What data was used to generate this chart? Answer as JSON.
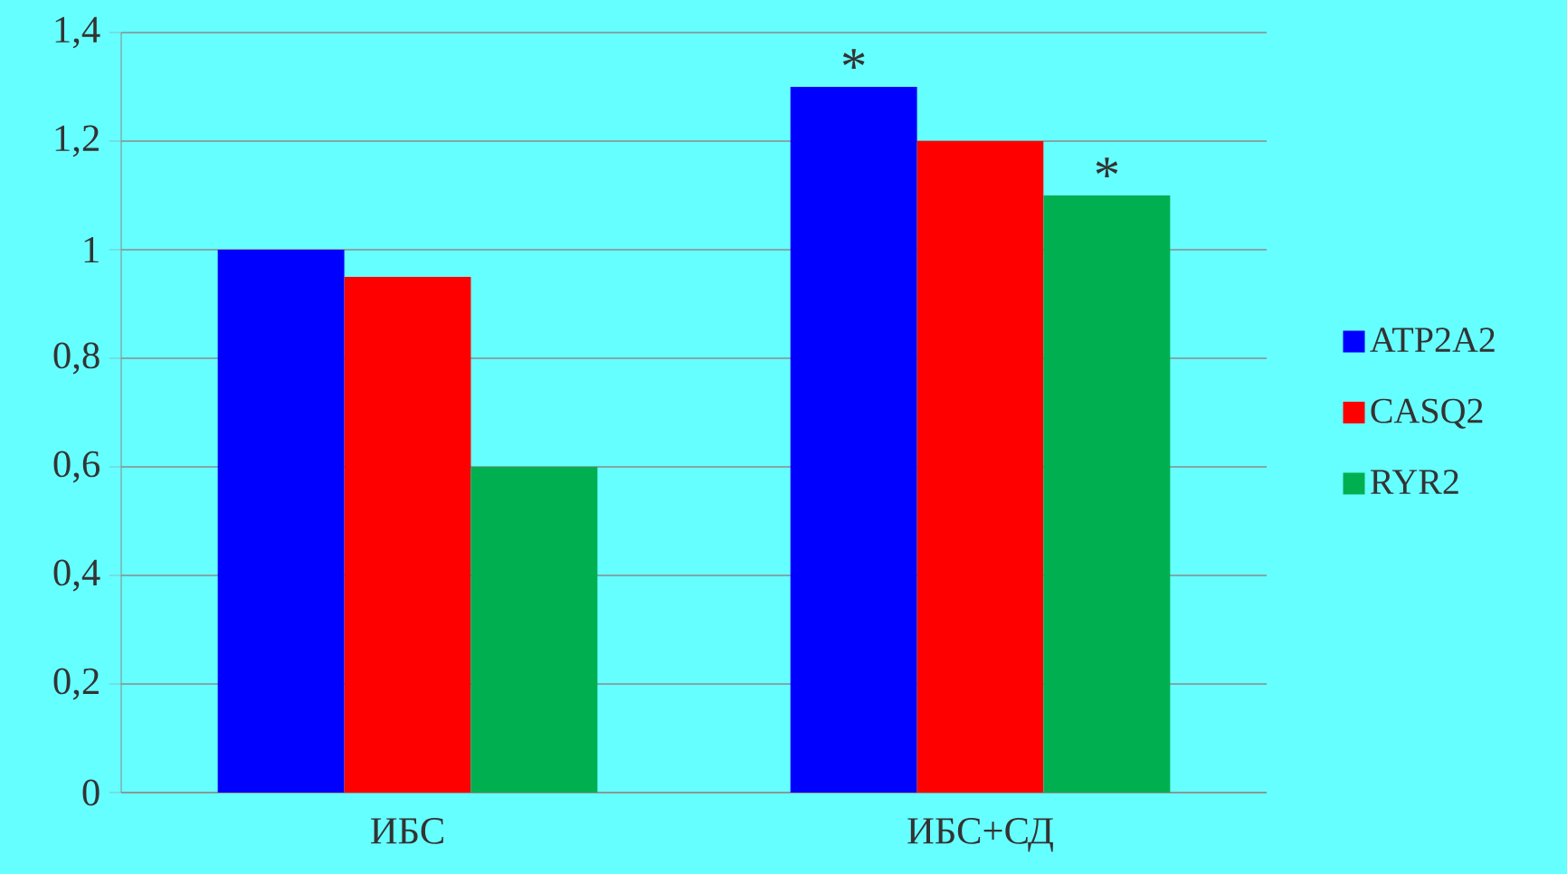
{
  "chart_data": {
    "type": "bar",
    "categories": [
      "ИБС",
      "ИБС+СД"
    ],
    "series": [
      {
        "name": "ATP2A2",
        "color": "#0000ff",
        "values": [
          1.0,
          1.3
        ]
      },
      {
        "name": "CASQ2",
        "color": "#ff0000",
        "values": [
          0.95,
          1.2
        ]
      },
      {
        "name": "RYR2",
        "color": "#00b050",
        "values": [
          0.6,
          1.1
        ]
      }
    ],
    "ylim": [
      0,
      1.4
    ],
    "yticks": [
      0,
      {
        "value": 0.2,
        "label": "0,2"
      },
      {
        "value": 0.4,
        "label": "0,4"
      },
      {
        "value": 0.6,
        "label": "0,6"
      },
      {
        "value": 0.8,
        "label": "0,8"
      },
      1,
      {
        "value": 1.2,
        "label": "1,2"
      },
      {
        "value": 1.4,
        "label": "1,4"
      }
    ],
    "grid": "y",
    "legend": "right",
    "annotations": [
      "*",
      "*"
    ]
  }
}
